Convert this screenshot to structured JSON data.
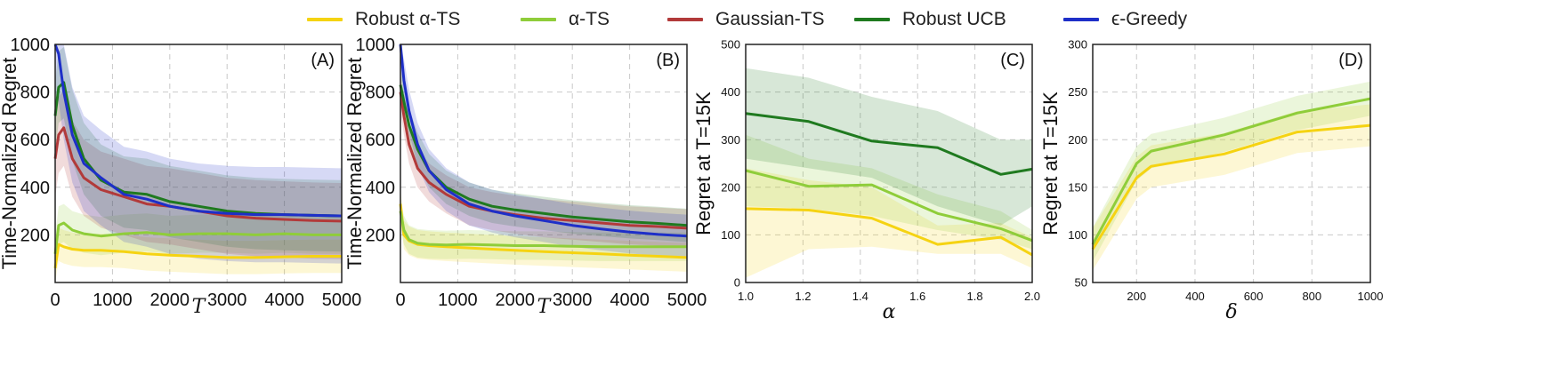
{
  "legend": [
    {
      "label": "Robust α-TS",
      "color": "#f5d312"
    },
    {
      "label": "α-TS",
      "color": "#8fcd3a"
    },
    {
      "label": "Gaussian-TS",
      "color": "#b23a3a"
    },
    {
      "label": "Robust UCB",
      "color": "#1f7a1f"
    },
    {
      "label": "ϵ-Greedy",
      "color": "#1e2fc8"
    }
  ],
  "chart_data": [
    {
      "type": "line",
      "panel_label": "(A)",
      "xlabel": "T",
      "ylabel": "Time-Normalized Regret",
      "xlim": [
        0,
        5000
      ],
      "ylim": [
        0,
        1000
      ],
      "xticks": [
        "0",
        "1000",
        "2000",
        "3000",
        "4000",
        "5000"
      ],
      "yticks": [
        "200",
        "400",
        "600",
        "800",
        "1000"
      ],
      "x": [
        0,
        60,
        150,
        300,
        500,
        800,
        1200,
        1600,
        2000,
        2500,
        3000,
        3500,
        4000,
        4500,
        5000
      ],
      "series": [
        {
          "name": "Robust α-TS",
          "color": "#f5d312",
          "values": [
            60,
            160,
            150,
            140,
            135,
            135,
            130,
            120,
            115,
            110,
            105,
            105,
            108,
            110,
            110
          ],
          "band": 70
        },
        {
          "name": "α-TS",
          "color": "#8fcd3a",
          "values": [
            120,
            240,
            250,
            220,
            205,
            195,
            205,
            210,
            200,
            205,
            205,
            200,
            205,
            200,
            200
          ],
          "band": 80
        },
        {
          "name": "Gaussian-TS",
          "color": "#b23a3a",
          "values": [
            520,
            620,
            650,
            520,
            440,
            390,
            360,
            330,
            320,
            300,
            280,
            270,
            265,
            260,
            258
          ],
          "band": 160
        },
        {
          "name": "Robust UCB",
          "color": "#1f7a1f",
          "values": [
            700,
            820,
            840,
            660,
            520,
            430,
            380,
            370,
            340,
            320,
            300,
            290,
            285,
            282,
            280
          ],
          "band": 150
        },
        {
          "name": "ϵ-Greedy",
          "color": "#1e2fc8",
          "values": [
            1000,
            960,
            800,
            620,
            500,
            440,
            370,
            350,
            320,
            300,
            290,
            285,
            285,
            282,
            280
          ],
          "band": 200
        }
      ]
    },
    {
      "type": "line",
      "panel_label": "(B)",
      "xlabel": "T",
      "ylabel": "Time-Normalized Regret",
      "xlim": [
        0,
        5000
      ],
      "ylim": [
        0,
        1000
      ],
      "xticks": [
        "0",
        "1000",
        "2000",
        "3000",
        "4000",
        "5000"
      ],
      "yticks": [
        "200",
        "400",
        "600",
        "800",
        "1000"
      ],
      "x": [
        0,
        60,
        150,
        300,
        500,
        800,
        1200,
        1600,
        2000,
        2500,
        3000,
        3500,
        4000,
        4500,
        5000
      ],
      "series": [
        {
          "name": "Robust α-TS",
          "color": "#f5d312",
          "values": [
            330,
            200,
            175,
            160,
            155,
            150,
            145,
            140,
            135,
            130,
            125,
            120,
            115,
            110,
            105
          ],
          "band": 60
        },
        {
          "name": "α-TS",
          "color": "#8fcd3a",
          "values": [
            300,
            220,
            180,
            165,
            160,
            158,
            160,
            158,
            155,
            155,
            152,
            150,
            150,
            150,
            150
          ],
          "band": 60
        },
        {
          "name": "Gaussian-TS",
          "color": "#b23a3a",
          "values": [
            800,
            700,
            580,
            480,
            420,
            370,
            320,
            300,
            285,
            270,
            260,
            250,
            240,
            235,
            228
          ],
          "band": 80
        },
        {
          "name": "Robust UCB",
          "color": "#1f7a1f",
          "values": [
            830,
            760,
            660,
            560,
            470,
            400,
            350,
            320,
            305,
            290,
            275,
            265,
            255,
            248,
            240
          ],
          "band": 70
        },
        {
          "name": "ϵ-Greedy",
          "color": "#1e2fc8",
          "values": [
            1000,
            850,
            720,
            580,
            470,
            390,
            330,
            300,
            280,
            260,
            240,
            225,
            212,
            202,
            195
          ],
          "band": 90
        }
      ]
    },
    {
      "type": "line",
      "panel_label": "(C)",
      "xlabel": "α",
      "ylabel": "Regret at T=15K",
      "xlim": [
        1.0,
        2.0
      ],
      "ylim": [
        0,
        500
      ],
      "xticks": [
        "1.0",
        "1.2",
        "1.4",
        "1.6",
        "1.8",
        "2.0"
      ],
      "yticks": [
        "0",
        "100",
        "200",
        "300",
        "400",
        "500"
      ],
      "x": [
        1.0,
        1.22,
        1.44,
        1.67,
        1.89,
        2.0
      ],
      "series": [
        {
          "name": "Robust α-TS",
          "color": "#f5d312",
          "values": [
            155,
            152,
            135,
            80,
            95,
            58
          ],
          "lower": [
            10,
            70,
            75,
            60,
            60,
            30
          ],
          "upper": [
            240,
            215,
            200,
            120,
            125,
            95
          ]
        },
        {
          "name": "α-TS",
          "color": "#8fcd3a",
          "values": [
            235,
            202,
            205,
            145,
            113,
            88
          ],
          "lower": [
            160,
            155,
            140,
            110,
            90,
            70
          ],
          "upper": [
            310,
            260,
            240,
            185,
            150,
            110
          ]
        },
        {
          "name": "Robust UCB",
          "color": "#1f7a1f",
          "values": [
            355,
            338,
            297,
            283,
            227,
            238
          ],
          "lower": [
            260,
            240,
            220,
            160,
            120,
            160
          ],
          "upper": [
            450,
            430,
            390,
            360,
            300,
            300
          ]
        }
      ]
    },
    {
      "type": "line",
      "panel_label": "(D)",
      "xlabel": "δ",
      "ylabel": "Regret at T=15K",
      "xlim": [
        50,
        1000
      ],
      "ylim": [
        50,
        300
      ],
      "xticks": [
        "200",
        "400",
        "600",
        "800",
        "1000"
      ],
      "yticks": [
        "50",
        "100",
        "150",
        "200",
        "250",
        "300"
      ],
      "x": [
        50,
        200,
        250,
        500,
        750,
        1000
      ],
      "series": [
        {
          "name": "Robust α-TS",
          "color": "#f5d312",
          "values": [
            85,
            160,
            172,
            185,
            208,
            215
          ],
          "band": 22
        },
        {
          "name": "α-TS",
          "color": "#8fcd3a",
          "values": [
            90,
            175,
            188,
            205,
            228,
            243
          ],
          "band": 18
        }
      ]
    }
  ]
}
